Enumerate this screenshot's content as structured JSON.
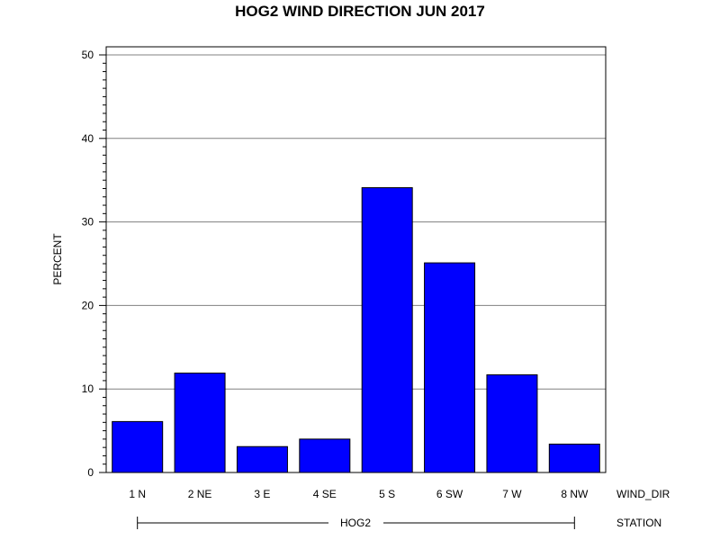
{
  "chart_data": {
    "type": "bar",
    "title": "HOG2 WIND DIRECTION JUN 2017",
    "ylabel": "PERCENT",
    "xlabel": "WIND_DIR",
    "group_axis_label": "STATION",
    "group": "HOG2",
    "categories": [
      "1 N",
      "2 NE",
      "3 E",
      "4 SE",
      "5 S",
      "6 SW",
      "7 W",
      "8 NW"
    ],
    "values": [
      6.1,
      11.9,
      3.1,
      4.0,
      34.1,
      25.1,
      11.7,
      3.4
    ],
    "ylim": [
      0,
      50
    ],
    "yticks": [
      0,
      10,
      20,
      30,
      40,
      50
    ],
    "grid": true,
    "bar_color": "#0000ff"
  }
}
